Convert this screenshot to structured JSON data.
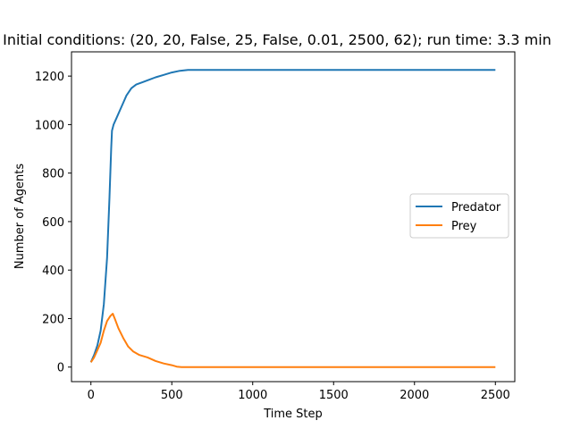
{
  "chart_data": {
    "type": "line",
    "title": "Initial conditions: (20, 20, False, 25, False, 0.01, 2500, 62); run time: 3.3 min",
    "xlabel": "Time Step",
    "ylabel": "Number of Agents",
    "xlim": [
      -120,
      2620
    ],
    "ylim": [
      -60,
      1300
    ],
    "xticks": [
      0,
      500,
      1000,
      1500,
      2000,
      2500
    ],
    "yticks": [
      0,
      200,
      400,
      600,
      800,
      1000,
      1200
    ],
    "grid": false,
    "legend_position": "center-right",
    "series": [
      {
        "name": "Predator",
        "color": "#1f77b4",
        "x": [
          0,
          20,
          40,
          60,
          80,
          100,
          115,
          125,
          130,
          140,
          160,
          180,
          200,
          220,
          250,
          280,
          320,
          360,
          400,
          450,
          500,
          550,
          600,
          700,
          800,
          1000,
          1200,
          1500,
          1800,
          2000,
          2200,
          2400,
          2500
        ],
        "y": [
          20,
          50,
          90,
          150,
          260,
          450,
          700,
          900,
          975,
          1000,
          1030,
          1060,
          1090,
          1120,
          1150,
          1165,
          1175,
          1185,
          1195,
          1205,
          1215,
          1222,
          1225,
          1225,
          1225,
          1225,
          1225,
          1225,
          1225,
          1225,
          1225,
          1225,
          1225
        ]
      },
      {
        "name": "Prey",
        "color": "#ff7f0e",
        "x": [
          0,
          20,
          40,
          60,
          80,
          100,
          120,
          135,
          150,
          170,
          200,
          230,
          260,
          300,
          350,
          400,
          450,
          500,
          530,
          560,
          700,
          1000,
          1500,
          2000,
          2500
        ],
        "y": [
          20,
          40,
          70,
          100,
          150,
          190,
          210,
          220,
          195,
          160,
          120,
          85,
          65,
          50,
          40,
          25,
          15,
          8,
          2,
          0,
          0,
          0,
          0,
          0,
          0
        ]
      }
    ]
  }
}
